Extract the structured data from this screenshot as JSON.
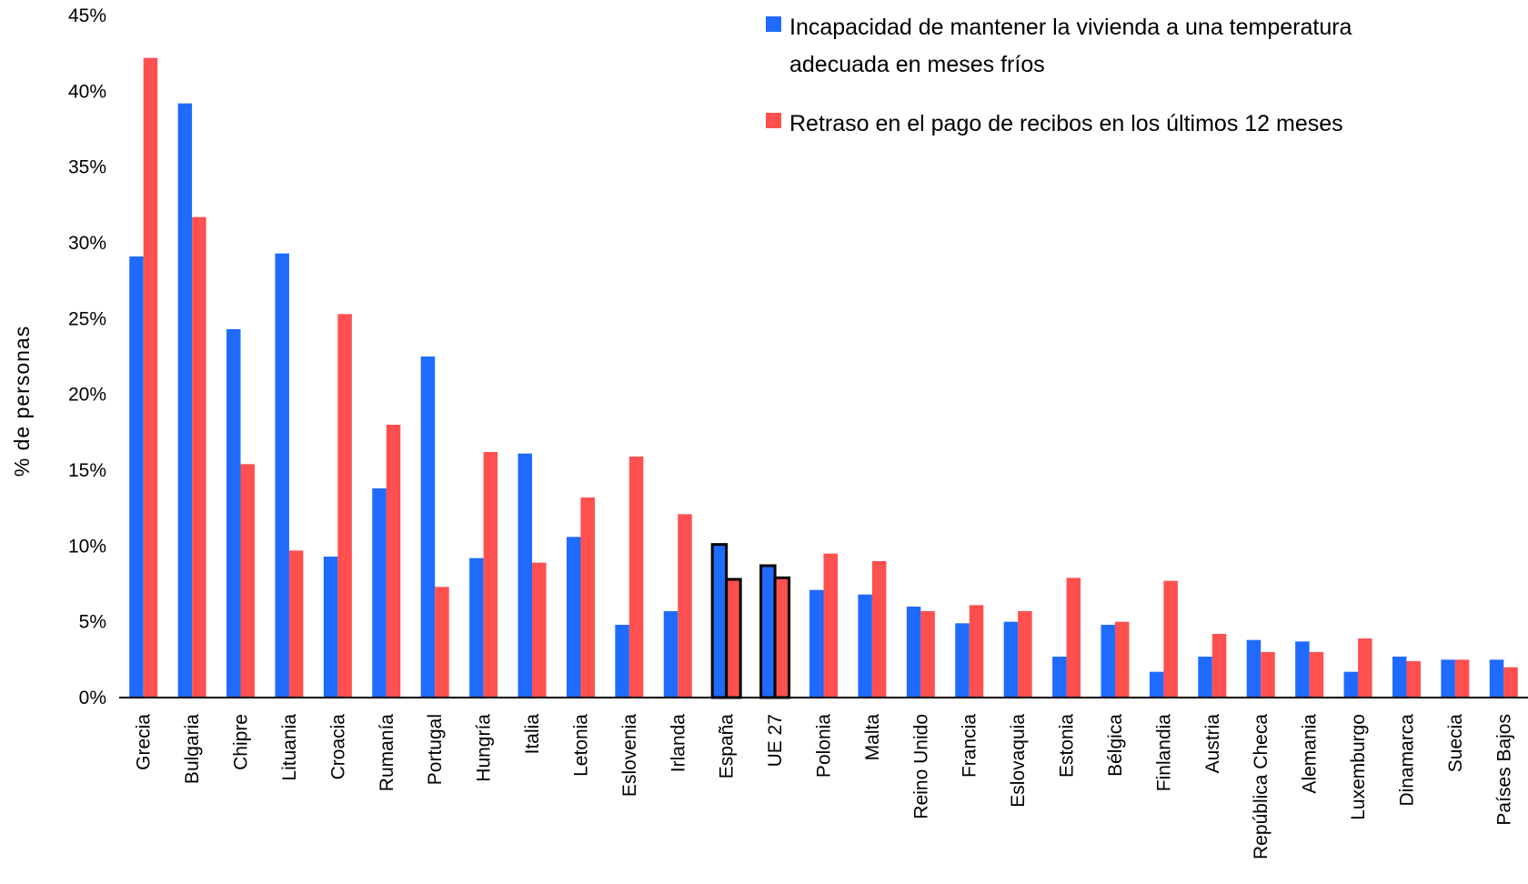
{
  "chart_data": {
    "type": "bar",
    "title": "",
    "xlabel": "",
    "ylabel": "%  de personas",
    "ylim": [
      0,
      45
    ],
    "yticks": [
      0,
      5,
      10,
      15,
      20,
      25,
      30,
      35,
      40,
      45
    ],
    "ytick_labels": [
      "0%",
      "5%",
      "10%",
      "15%",
      "20%",
      "25%",
      "30%",
      "35%",
      "40%",
      "45%"
    ],
    "grid": false,
    "legend_position": "top-right",
    "categories": [
      "Grecia",
      "Bulgaria",
      "Chipre",
      "Lituania",
      "Croacia",
      "Rumanía",
      "Portugal",
      "Hungría",
      "Italia",
      "Letonia",
      "Eslovenia",
      "Irlanda",
      "España",
      "UE 27",
      "Polonia",
      "Malta",
      "Reino Unido",
      "Francia",
      "Eslovaquia",
      "Estonia",
      "Bélgica",
      "Finlandia",
      "Austria",
      "República Checa",
      "Alemania",
      "Luxemburgo",
      "Dinamarca",
      "Suecia",
      "Países Bajos"
    ],
    "highlighted_categories": [
      "España",
      "UE 27"
    ],
    "series": [
      {
        "name": "Incapacidad de mantener la vivienda a una temperatura adecuada en meses fríos",
        "legend_lines": [
          "Incapacidad de mantener la vivienda a una temperatura",
          "adecuada en meses fríos"
        ],
        "color": "#1f6bff",
        "values": [
          29.1,
          39.2,
          24.3,
          29.3,
          9.3,
          13.8,
          22.5,
          9.2,
          16.1,
          10.6,
          4.8,
          5.7,
          10.1,
          8.7,
          7.1,
          6.8,
          6.0,
          4.9,
          5.0,
          2.7,
          4.8,
          1.7,
          2.7,
          3.8,
          3.7,
          1.7,
          2.7,
          2.5,
          2.5
        ]
      },
      {
        "name": "Retraso en el pago de recibos en los últimos 12 meses",
        "legend_lines": [
          "Retraso en el pago de recibos en los últimos 12 meses"
        ],
        "color": "#ff4f4f",
        "values": [
          42.2,
          31.7,
          15.4,
          9.7,
          25.3,
          18.0,
          7.3,
          16.2,
          8.9,
          13.2,
          15.9,
          12.1,
          7.8,
          7.9,
          9.5,
          9.0,
          5.7,
          6.1,
          5.7,
          7.9,
          5.0,
          7.7,
          4.2,
          3.0,
          3.0,
          3.9,
          2.4,
          2.5,
          2.0
        ]
      }
    ]
  }
}
